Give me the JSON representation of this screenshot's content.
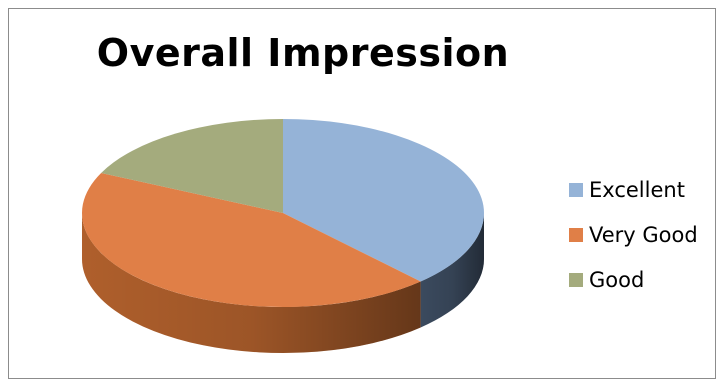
{
  "chart_data": {
    "type": "pie",
    "title": "Overall Impression",
    "categories": [
      "Excellent",
      "Very Good",
      "Good"
    ],
    "values": [
      38,
      44,
      18
    ],
    "colors": [
      "#95B3D7",
      "#E07F47",
      "#A4AB7D"
    ],
    "side_colors": [
      "#3E4E63",
      "#B8642E",
      "#6B7052"
    ],
    "style": "3d-exploded-none",
    "legend_position": "right"
  }
}
